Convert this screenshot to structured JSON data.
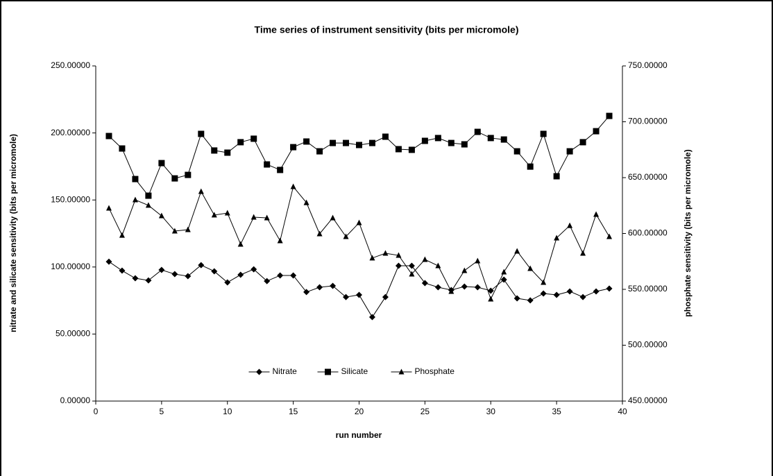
{
  "chart_data": {
    "type": "line",
    "title": "Time series of instrument sensitivity (bits per micromole)",
    "x_label": "run number",
    "y_label": "nitrate and silicate sensitivity (bits per micromole)",
    "y2_label": "phosphate sensitivity (bits per micromole)",
    "x": [
      1,
      2,
      3,
      4,
      5,
      6,
      7,
      8,
      9,
      10,
      11,
      12,
      13,
      14,
      15,
      16,
      17,
      18,
      19,
      20,
      21,
      22,
      23,
      24,
      25,
      26,
      27,
      28,
      29,
      30,
      31,
      32,
      33,
      34,
      35,
      36,
      37,
      38,
      39
    ],
    "xlim": [
      0,
      40
    ],
    "xticks": [
      0,
      5,
      10,
      15,
      20,
      25,
      30,
      35,
      40
    ],
    "ylim": [
      0,
      250
    ],
    "yticks": [
      {
        "value": 0,
        "label": "0.00000"
      },
      {
        "value": 50,
        "label": "50.00000"
      },
      {
        "value": 100,
        "label": "100.00000"
      },
      {
        "value": 150,
        "label": "150.00000"
      },
      {
        "value": 200,
        "label": "200.00000"
      },
      {
        "value": 250,
        "label": "250.00000"
      }
    ],
    "y2lim": [
      450,
      750
    ],
    "y2ticks": [
      {
        "value": 450,
        "label": "450.00000"
      },
      {
        "value": 500,
        "label": "500.00000"
      },
      {
        "value": 550,
        "label": "550.00000"
      },
      {
        "value": 600,
        "label": "600.00000"
      },
      {
        "value": 650,
        "label": "650.00000"
      },
      {
        "value": 700,
        "label": "700.00000"
      },
      {
        "value": 750,
        "label": "750.00000"
      }
    ],
    "grid": false,
    "legend": "bottom",
    "series": [
      {
        "name": "Nitrate",
        "color": "#000000",
        "marker": "diamond",
        "values": [
          104.0,
          97.3,
          91.6,
          90.0,
          97.8,
          94.7,
          93.2,
          101.4,
          96.8,
          88.5,
          94.2,
          98.3,
          89.5,
          93.7,
          93.7,
          81.3,
          84.9,
          85.9,
          77.6,
          79.2,
          62.6,
          77.6,
          100.9,
          100.9,
          88.0,
          84.9,
          82.8,
          85.4,
          84.9,
          82.3,
          90.6,
          76.6,
          75.1,
          80.2,
          79.2,
          81.8,
          77.6,
          81.8,
          83.9
        ]
      },
      {
        "name": "Silicate",
        "color": "#000000",
        "marker": "square",
        "values": [
          197.7,
          188.4,
          165.6,
          153.2,
          177.5,
          166.1,
          168.7,
          199.3,
          186.9,
          185.3,
          193.1,
          195.7,
          176.5,
          172.4,
          189.4,
          193.6,
          186.3,
          192.5,
          192.5,
          191.0,
          192.5,
          197.2,
          187.9,
          187.4,
          194.1,
          196.2,
          192.5,
          191.5,
          200.8,
          196.2,
          195.1,
          186.3,
          174.9,
          199.3,
          167.7,
          186.3,
          193.1,
          201.3,
          212.7
        ]
      },
      {
        "name": "Phosphate",
        "color": "#000000",
        "marker": "triangle",
        "axis": "y2",
        "values": [
          622.7,
          598.4,
          630.1,
          625.2,
          615.8,
          602.2,
          603.4,
          637.6,
          616.5,
          618.3,
          590.4,
          614.6,
          614.0,
          593.5,
          641.9,
          627.6,
          599.7,
          614.0,
          597.2,
          609.6,
          578.0,
          582.3,
          580.4,
          563.7,
          576.7,
          571.1,
          548.1,
          566.8,
          575.5,
          541.3,
          565.5,
          584.2,
          568.6,
          556.2,
          596.0,
          607.1,
          582.3,
          617.1,
          597.2
        ]
      }
    ]
  }
}
